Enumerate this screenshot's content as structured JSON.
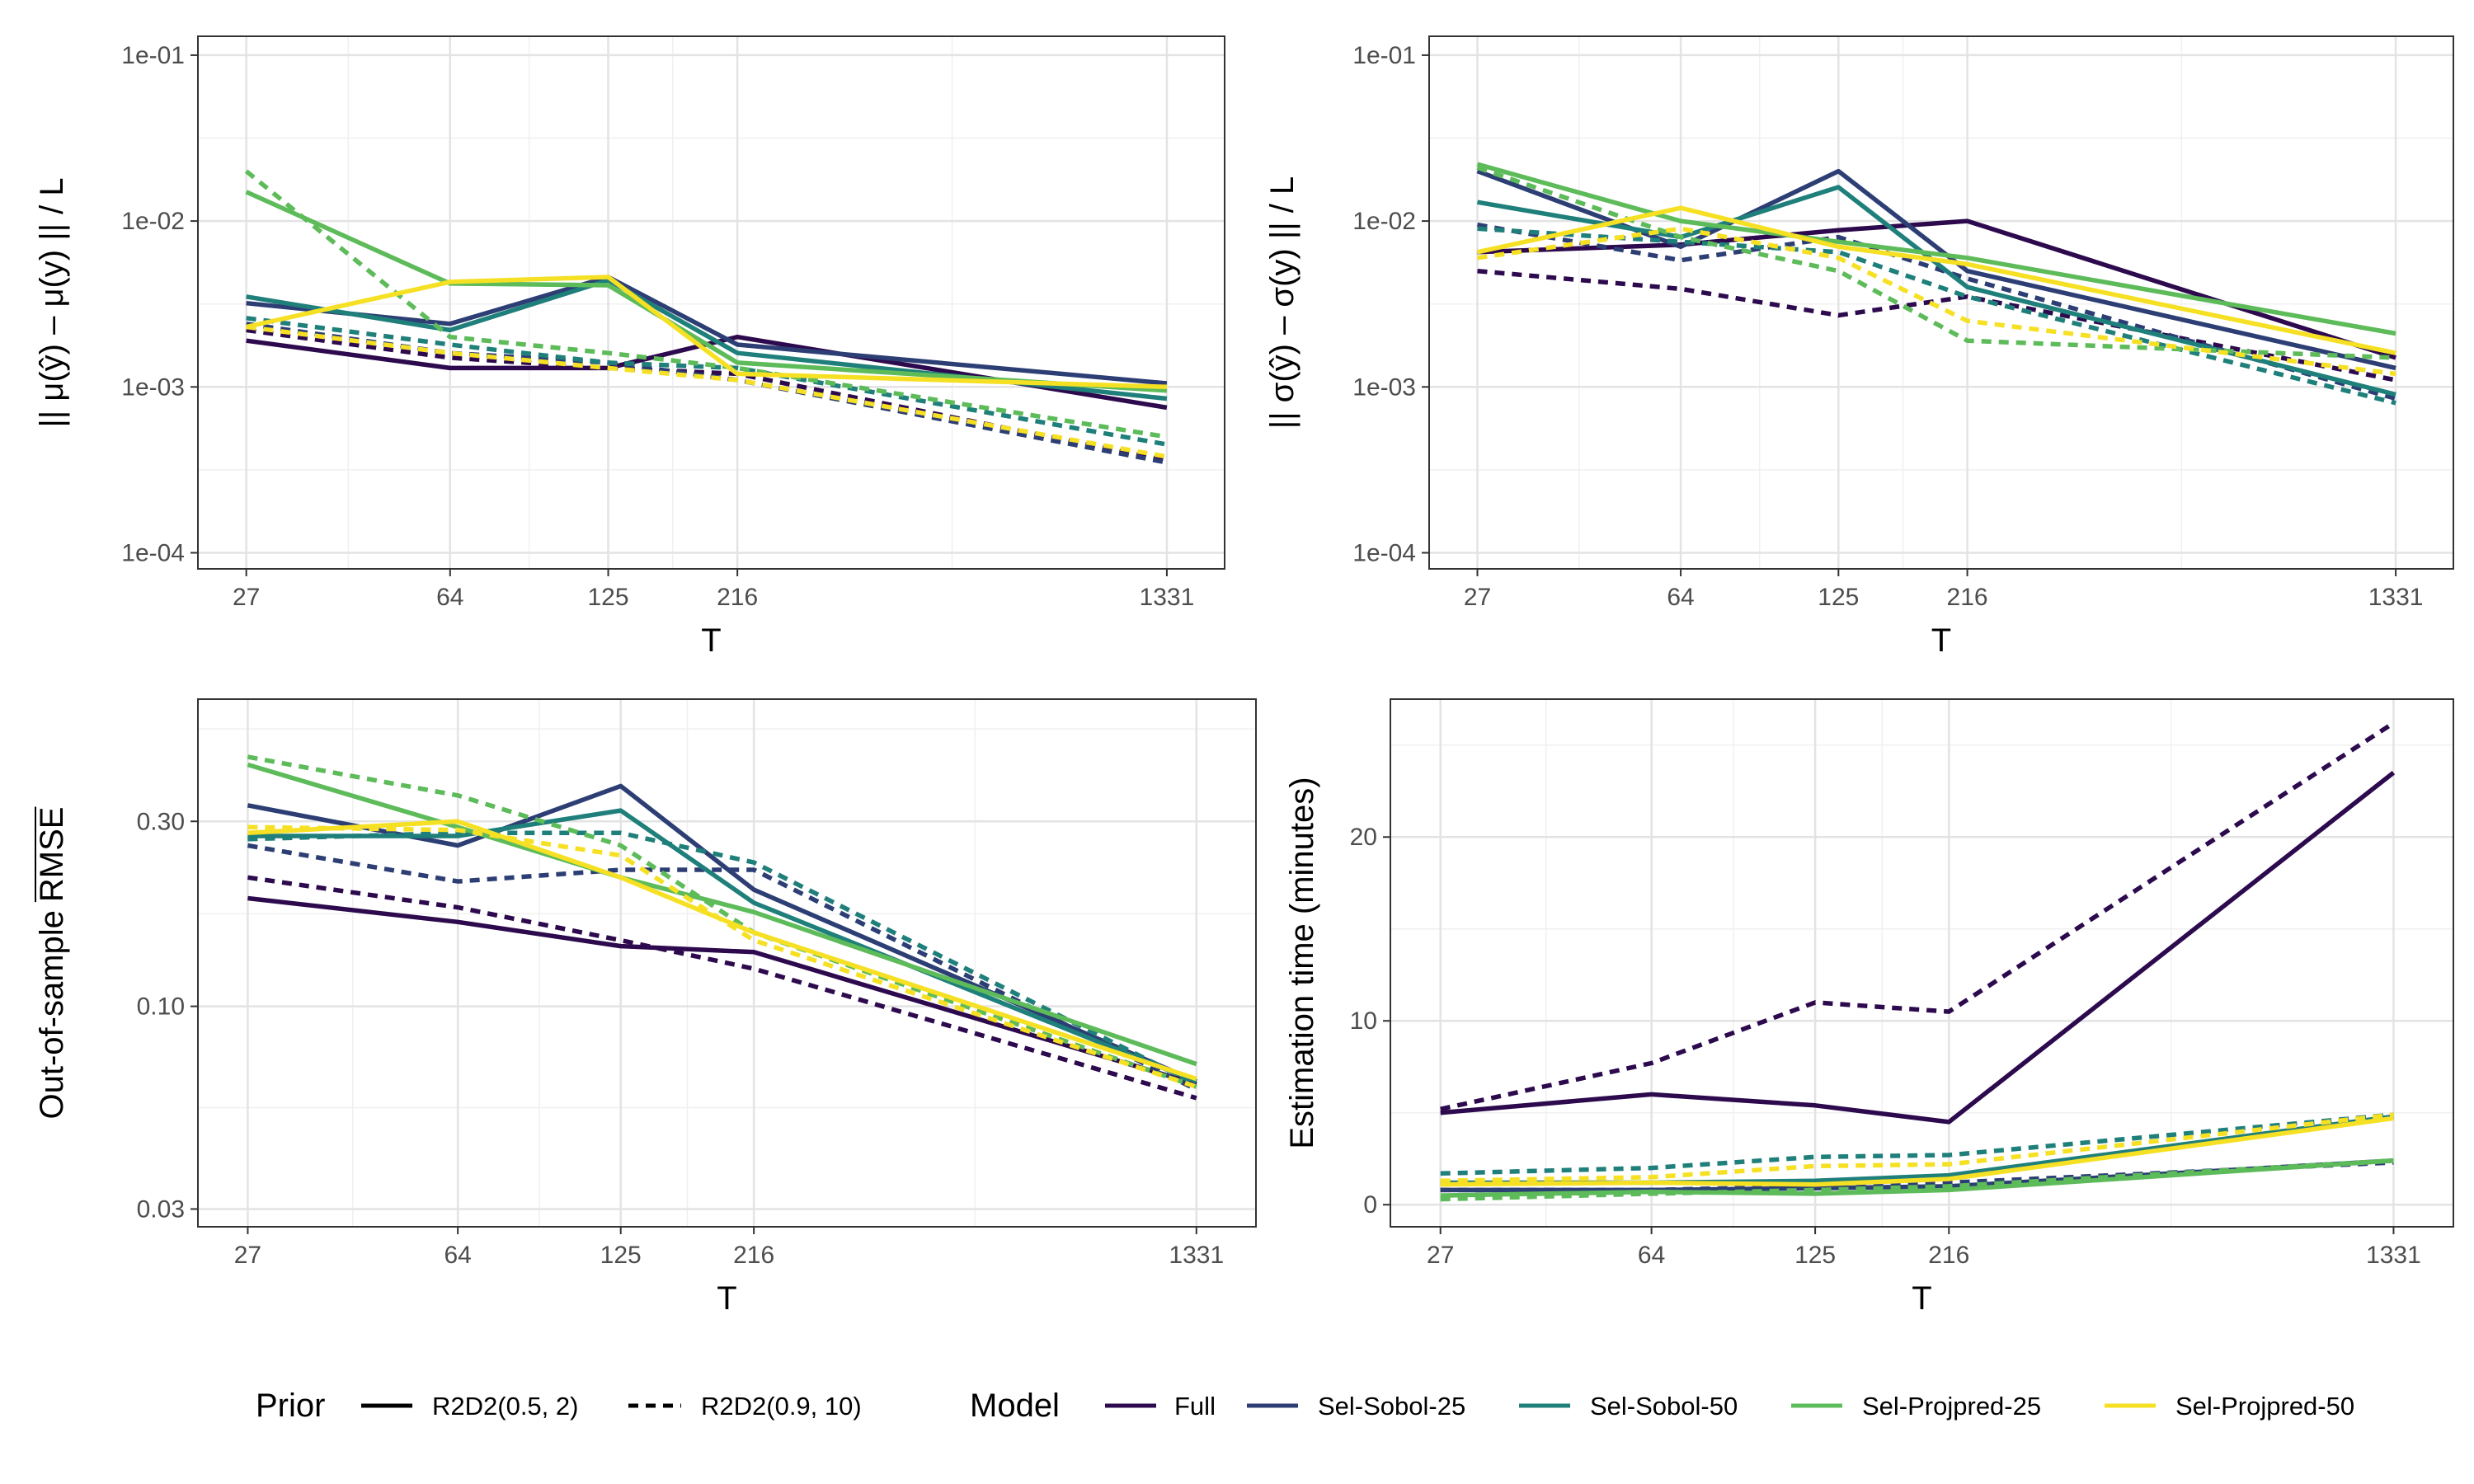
{
  "colors": {
    "Full": "#2d0a4e",
    "Sel-Sobol-25": "#2c3e74",
    "Sel-Sobol-50": "#1f7f7a",
    "Sel-Projpred-25": "#5dbb5a",
    "Sel-Projpred-50": "#f6e024"
  },
  "legend": {
    "prior_title": "Prior",
    "prior_items": [
      {
        "label": "R2D2(0.5, 2)",
        "dash": "solid"
      },
      {
        "label": "R2D2(0.9, 10)",
        "dash": "dashed"
      }
    ],
    "model_title": "Model",
    "model_items": [
      "Full",
      "Sel-Sobol-25",
      "Sel-Sobol-50",
      "Sel-Projpred-25",
      "Sel-Projpred-50"
    ]
  },
  "chart_data": [
    {
      "id": "mu",
      "type": "line",
      "xlabel": "T",
      "ylabel_text": "|| μ(ŷ) – μ(y) || / L",
      "xscale": "log",
      "yscale": "log",
      "xticks": [
        27,
        64,
        125,
        216,
        1331
      ],
      "xlim": [
        22,
        1700
      ],
      "ylim": [
        8e-05,
        0.13
      ],
      "yticks": [
        0.0001,
        0.001,
        0.01,
        0.1
      ],
      "yticklabels": [
        "1e-04",
        "1e-03",
        "1e-02",
        "1e-01"
      ],
      "x": [
        27,
        64,
        125,
        216,
        1331
      ],
      "series": [
        {
          "model": "Full",
          "prior": "R2D2(0.5, 2)",
          "values": [
            0.0019,
            0.0013,
            0.0013,
            0.002,
            0.00075
          ]
        },
        {
          "model": "Full",
          "prior": "R2D2(0.9, 10)",
          "values": [
            0.0022,
            0.0015,
            0.0013,
            0.0012,
            0.00036
          ]
        },
        {
          "model": "Sel-Sobol-25",
          "prior": "R2D2(0.5, 2)",
          "values": [
            0.0032,
            0.0024,
            0.0046,
            0.0018,
            0.00105
          ]
        },
        {
          "model": "Sel-Sobol-25",
          "prior": "R2D2(0.9, 10)",
          "values": [
            0.0024,
            0.0016,
            0.0014,
            0.0011,
            0.00035
          ]
        },
        {
          "model": "Sel-Sobol-50",
          "prior": "R2D2(0.5, 2)",
          "values": [
            0.0035,
            0.0022,
            0.0044,
            0.0016,
            0.00085
          ]
        },
        {
          "model": "Sel-Sobol-50",
          "prior": "R2D2(0.9, 10)",
          "values": [
            0.0026,
            0.0018,
            0.0014,
            0.0013,
            0.00045
          ]
        },
        {
          "model": "Sel-Projpred-25",
          "prior": "R2D2(0.5, 2)",
          "values": [
            0.015,
            0.0042,
            0.0041,
            0.0014,
            0.00095
          ]
        },
        {
          "model": "Sel-Projpred-25",
          "prior": "R2D2(0.9, 10)",
          "values": [
            0.02,
            0.002,
            0.0016,
            0.0013,
            0.0005
          ]
        },
        {
          "model": "Sel-Projpred-50",
          "prior": "R2D2(0.5, 2)",
          "values": [
            0.0023,
            0.0043,
            0.0046,
            0.0012,
            0.001
          ]
        },
        {
          "model": "Sel-Projpred-50",
          "prior": "R2D2(0.9, 10)",
          "values": [
            0.0023,
            0.0016,
            0.0013,
            0.0011,
            0.00038
          ]
        }
      ]
    },
    {
      "id": "sigma",
      "type": "line",
      "xlabel": "T",
      "ylabel_text": "|| σ(ŷ) – σ(y) || / L",
      "xscale": "log",
      "yscale": "log",
      "xticks": [
        27,
        64,
        125,
        216,
        1331
      ],
      "xlim": [
        22,
        1700
      ],
      "ylim": [
        8e-05,
        0.13
      ],
      "yticks": [
        0.0001,
        0.001,
        0.01,
        0.1
      ],
      "yticklabels": [
        "1e-04",
        "1e-03",
        "1e-02",
        "1e-01"
      ],
      "x": [
        27,
        64,
        125,
        216,
        1331
      ],
      "series": [
        {
          "model": "Full",
          "prior": "R2D2(0.5, 2)",
          "values": [
            0.0065,
            0.0072,
            0.0088,
            0.01,
            0.0015
          ]
        },
        {
          "model": "Full",
          "prior": "R2D2(0.9, 10)",
          "values": [
            0.005,
            0.0039,
            0.0027,
            0.0035,
            0.0011
          ]
        },
        {
          "model": "Sel-Sobol-25",
          "prior": "R2D2(0.5, 2)",
          "values": [
            0.02,
            0.007,
            0.02,
            0.005,
            0.0013
          ]
        },
        {
          "model": "Sel-Sobol-25",
          "prior": "R2D2(0.9, 10)",
          "values": [
            0.0095,
            0.0058,
            0.008,
            0.0045,
            0.00085
          ]
        },
        {
          "model": "Sel-Sobol-50",
          "prior": "R2D2(0.5, 2)",
          "values": [
            0.013,
            0.008,
            0.016,
            0.004,
            0.0009
          ]
        },
        {
          "model": "Sel-Sobol-50",
          "prior": "R2D2(0.9, 10)",
          "values": [
            0.009,
            0.0075,
            0.0065,
            0.0035,
            0.0008
          ]
        },
        {
          "model": "Sel-Projpred-25",
          "prior": "R2D2(0.5, 2)",
          "values": [
            0.022,
            0.01,
            0.0075,
            0.006,
            0.0021
          ]
        },
        {
          "model": "Sel-Projpred-25",
          "prior": "R2D2(0.9, 10)",
          "values": [
            0.021,
            0.008,
            0.005,
            0.0019,
            0.0015
          ]
        },
        {
          "model": "Sel-Projpred-50",
          "prior": "R2D2(0.5, 2)",
          "values": [
            0.0065,
            0.012,
            0.007,
            0.0055,
            0.0016
          ]
        },
        {
          "model": "Sel-Projpred-50",
          "prior": "R2D2(0.9, 10)",
          "values": [
            0.006,
            0.009,
            0.006,
            0.0025,
            0.0012
          ]
        }
      ]
    },
    {
      "id": "rmse",
      "type": "line",
      "xlabel": "T",
      "ylabel_text": "Out-of-sample",
      "ylabel_overline": "RMSE",
      "xscale": "log",
      "yscale": "log",
      "xticks": [
        27,
        64,
        125,
        216,
        1331
      ],
      "xlim": [
        22,
        1700
      ],
      "ylim": [
        0.027,
        0.62
      ],
      "yticks": [
        0.03,
        0.1,
        0.3
      ],
      "yticklabels": [
        "0.03",
        "0.10",
        "0.30"
      ],
      "x": [
        27,
        64,
        125,
        216,
        1331
      ],
      "series": [
        {
          "model": "Full",
          "prior": "R2D2(0.5, 2)",
          "values": [
            0.19,
            0.165,
            0.143,
            0.138,
            0.063
          ]
        },
        {
          "model": "Full",
          "prior": "R2D2(0.9, 10)",
          "values": [
            0.215,
            0.18,
            0.148,
            0.125,
            0.058
          ]
        },
        {
          "model": "Sel-Sobol-25",
          "prior": "R2D2(0.5, 2)",
          "values": [
            0.33,
            0.26,
            0.37,
            0.2,
            0.064
          ]
        },
        {
          "model": "Sel-Sobol-25",
          "prior": "R2D2(0.9, 10)",
          "values": [
            0.26,
            0.21,
            0.225,
            0.225,
            0.061
          ]
        },
        {
          "model": "Sel-Sobol-50",
          "prior": "R2D2(0.5, 2)",
          "values": [
            0.275,
            0.275,
            0.32,
            0.185,
            0.064
          ]
        },
        {
          "model": "Sel-Sobol-50",
          "prior": "R2D2(0.9, 10)",
          "values": [
            0.27,
            0.28,
            0.28,
            0.235,
            0.063
          ]
        },
        {
          "model": "Sel-Projpred-25",
          "prior": "R2D2(0.5, 2)",
          "values": [
            0.42,
            0.29,
            0.215,
            0.175,
            0.071
          ]
        },
        {
          "model": "Sel-Projpred-25",
          "prior": "R2D2(0.9, 10)",
          "values": [
            0.44,
            0.35,
            0.26,
            0.155,
            0.062
          ]
        },
        {
          "model": "Sel-Projpred-50",
          "prior": "R2D2(0.5, 2)",
          "values": [
            0.28,
            0.3,
            0.215,
            0.155,
            0.065
          ]
        },
        {
          "model": "Sel-Projpred-50",
          "prior": "R2D2(0.9, 10)",
          "values": [
            0.29,
            0.285,
            0.245,
            0.148,
            0.062
          ]
        }
      ]
    },
    {
      "id": "time",
      "type": "line",
      "xlabel": "T",
      "ylabel_text": "Estimation time (minutes)",
      "xscale": "log",
      "yscale": "linear",
      "xticks": [
        27,
        64,
        125,
        216,
        1331
      ],
      "xlim": [
        22,
        1700
      ],
      "ylim": [
        -1.2,
        27.5
      ],
      "yticks": [
        0,
        10,
        20
      ],
      "yticklabels": [
        "0",
        "10",
        "20"
      ],
      "x": [
        27,
        64,
        125,
        216,
        1331
      ],
      "series": [
        {
          "model": "Full",
          "prior": "R2D2(0.5, 2)",
          "values": [
            5.0,
            6.0,
            5.4,
            4.5,
            23.5
          ]
        },
        {
          "model": "Full",
          "prior": "R2D2(0.9, 10)",
          "values": [
            5.2,
            7.7,
            11.0,
            10.5,
            26.2
          ]
        },
        {
          "model": "Sel-Sobol-25",
          "prior": "R2D2(0.5, 2)",
          "values": [
            0.8,
            0.8,
            0.9,
            1.0,
            2.4
          ]
        },
        {
          "model": "Sel-Sobol-25",
          "prior": "R2D2(0.9, 10)",
          "values": [
            0.8,
            0.8,
            1.0,
            1.2,
            2.3
          ]
        },
        {
          "model": "Sel-Sobol-50",
          "prior": "R2D2(0.5, 2)",
          "values": [
            1.2,
            1.2,
            1.3,
            1.6,
            4.8
          ]
        },
        {
          "model": "Sel-Sobol-50",
          "prior": "R2D2(0.9, 10)",
          "values": [
            1.7,
            2.0,
            2.6,
            2.7,
            4.9
          ]
        },
        {
          "model": "Sel-Projpred-25",
          "prior": "R2D2(0.5, 2)",
          "values": [
            0.5,
            0.7,
            0.6,
            0.8,
            2.4
          ]
        },
        {
          "model": "Sel-Projpred-25",
          "prior": "R2D2(0.9, 10)",
          "values": [
            0.3,
            0.6,
            0.8,
            1.0,
            2.4
          ]
        },
        {
          "model": "Sel-Projpred-50",
          "prior": "R2D2(0.5, 2)",
          "values": [
            1.1,
            1.2,
            1.1,
            1.4,
            4.7
          ]
        },
        {
          "model": "Sel-Projpred-50",
          "prior": "R2D2(0.9, 10)",
          "values": [
            1.3,
            1.5,
            2.1,
            2.2,
            4.9
          ]
        }
      ]
    }
  ]
}
